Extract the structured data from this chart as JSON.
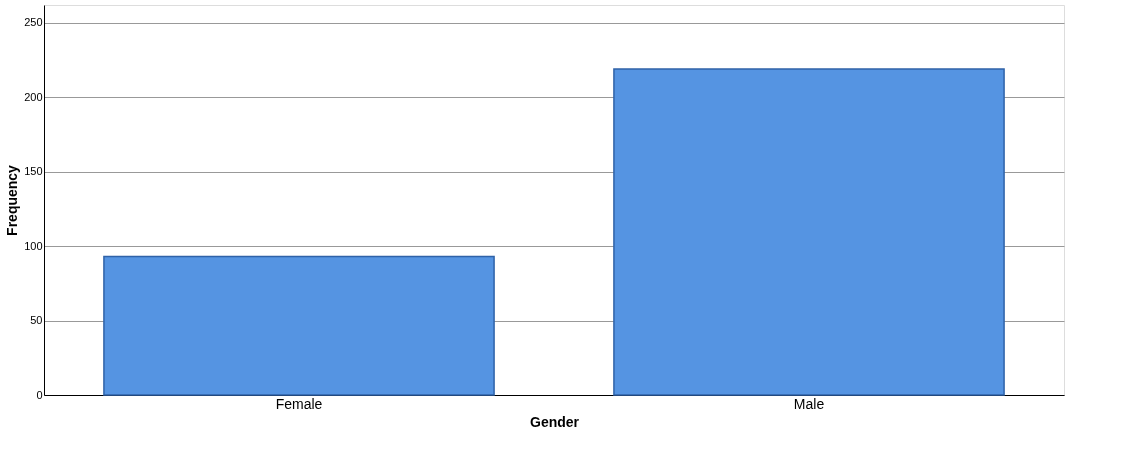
{
  "chart_data": {
    "type": "bar",
    "xlabel": "Gender",
    "ylabel": "Frequency",
    "categories": [
      "Female",
      "Male"
    ],
    "values": [
      93,
      219
    ],
    "color": "#5594e2",
    "ylim": [
      0,
      262
    ],
    "yticks": [
      0,
      50,
      100,
      150,
      200,
      250
    ],
    "grid": "y"
  }
}
